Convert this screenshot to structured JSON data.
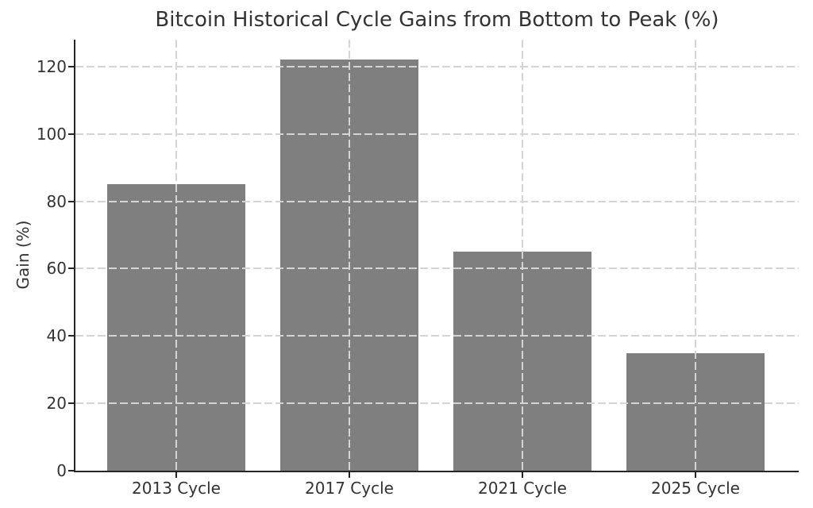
{
  "chart_data": {
    "type": "bar",
    "title": "Bitcoin Historical Cycle Gains from Bottom to Peak (%)",
    "xlabel": "",
    "ylabel": "Gain (%)",
    "categories": [
      "2013 Cycle",
      "2017 Cycle",
      "2021 Cycle",
      "2025 Cycle"
    ],
    "values": [
      85,
      122,
      65,
      35
    ],
    "ylim": [
      0,
      128
    ],
    "yticks": [
      0,
      20,
      40,
      60,
      80,
      100,
      120
    ],
    "grid": {
      "visible": true,
      "style": "dashed",
      "axes": "both"
    },
    "legend": {
      "visible": false
    },
    "colors": {
      "bar": "#7f7f7f",
      "grid": "#d4d4d4",
      "spine": "#262626",
      "text": "#333333",
      "background": "#ffffff"
    }
  }
}
